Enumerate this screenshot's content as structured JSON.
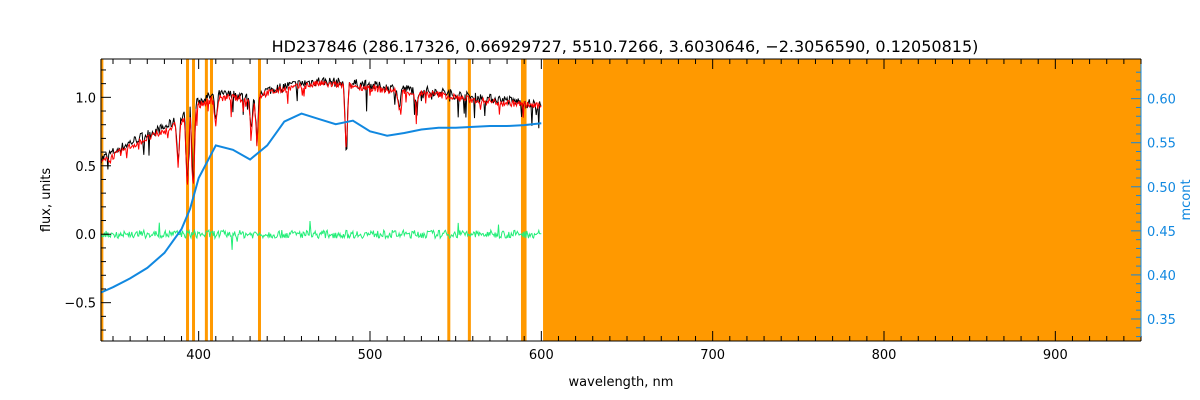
{
  "chart_data": {
    "type": "line",
    "title": "HD237846    (286.17326, 0.66929727, 5510.7266, 3.6030646, −2.3056590, 0.12050815)",
    "xlabel": "wavelength, nm",
    "ylabel": "flux, units",
    "y2label": "mcont",
    "xlim": [
      343,
      950
    ],
    "ylim": [
      -0.78,
      1.28
    ],
    "y2lim": [
      0.325,
      0.645
    ],
    "x_ticks": [
      400,
      500,
      600,
      700,
      800,
      900
    ],
    "x_tick_labels": [
      "400",
      "500",
      "600",
      "700",
      "800",
      "900"
    ],
    "y_ticks": [
      -0.5,
      0.0,
      0.5,
      1.0
    ],
    "y_tick_labels": [
      "−0.5",
      "0.0",
      "0.5",
      "1.0"
    ],
    "y2_ticks": [
      0.35,
      0.4,
      0.45,
      0.5,
      0.55,
      0.6
    ],
    "y2_tick_labels": [
      "0.35",
      "0.40",
      "0.45",
      "0.50",
      "0.55",
      "0.60"
    ],
    "masked_band": [
      601,
      950
    ],
    "masked_lines": [
      343.5,
      393.5,
      397.0,
      404.5,
      407.5,
      435.5,
      546.0,
      558.0,
      589.0,
      590.5
    ],
    "colors": {
      "observed": "#000000",
      "model": "#ff0000",
      "residual": "#22ee77",
      "continuum": "#1188e0",
      "mask": "#ff9900"
    },
    "series": [
      {
        "role": "observed",
        "x": [
          343,
          350,
          360,
          370,
          380,
          390,
          395,
          400,
          405,
          410,
          420,
          430,
          434,
          440,
          450,
          460,
          470,
          480,
          490,
          500,
          510,
          520,
          530,
          540,
          550,
          560,
          570,
          580,
          590,
          600
        ],
        "y": [
          0.55,
          0.6,
          0.67,
          0.73,
          0.78,
          0.85,
          0.9,
          0.97,
          1.0,
          1.02,
          1.02,
          1.0,
          1.03,
          1.05,
          1.08,
          1.1,
          1.12,
          1.11,
          1.1,
          1.09,
          1.07,
          1.06,
          1.05,
          1.04,
          1.02,
          1.0,
          0.99,
          0.98,
          0.96,
          0.94
        ]
      },
      {
        "role": "model",
        "x": [
          343,
          350,
          360,
          370,
          380,
          390,
          395,
          400,
          405,
          410,
          420,
          430,
          434,
          440,
          450,
          460,
          470,
          480,
          490,
          500,
          510,
          520,
          530,
          540,
          550,
          560,
          570,
          580,
          590,
          600
        ],
        "y": [
          0.52,
          0.57,
          0.64,
          0.7,
          0.75,
          0.82,
          0.87,
          0.94,
          0.97,
          0.99,
          1.0,
          0.97,
          1.01,
          1.03,
          1.06,
          1.08,
          1.1,
          1.09,
          1.08,
          1.07,
          1.05,
          1.04,
          1.03,
          1.02,
          1.0,
          0.98,
          0.97,
          0.96,
          0.95,
          0.93
        ]
      },
      {
        "role": "residual",
        "x": [
          343,
          400,
          500,
          600
        ],
        "y": [
          0.0,
          0.0,
          0.0,
          0.0
        ]
      },
      {
        "role": "continuum",
        "axis": "right",
        "x": [
          343,
          350,
          360,
          370,
          380,
          390,
          395,
          400,
          410,
          420,
          430,
          440,
          450,
          460,
          470,
          480,
          490,
          500,
          510,
          520,
          530,
          540,
          550,
          560,
          570,
          580,
          590,
          600
        ],
        "y": [
          0.38,
          0.386,
          0.396,
          0.408,
          0.425,
          0.452,
          0.475,
          0.51,
          0.547,
          0.542,
          0.531,
          0.547,
          0.574,
          0.583,
          0.577,
          0.571,
          0.575,
          0.563,
          0.558,
          0.561,
          0.565,
          0.567,
          0.567,
          0.568,
          0.569,
          0.569,
          0.57,
          0.572
        ]
      }
    ]
  }
}
